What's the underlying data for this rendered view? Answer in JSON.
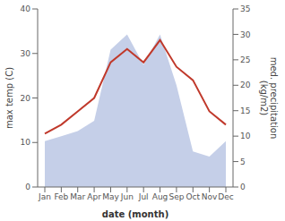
{
  "chart_data": {
    "type": "line",
    "x_label": "date (month)",
    "y_label": "max temp (C)",
    "y2_label": "med. precipitation\n(kg/m2)",
    "categories": [
      "Jan",
      "Feb",
      "Mar",
      "Apr",
      "May",
      "Jun",
      "Jul",
      "Aug",
      "Sep",
      "Oct",
      "Nov",
      "Dec"
    ],
    "series": [
      {
        "type": "area",
        "axis": "y2",
        "color": "#c5cfe8",
        "values": [
          9,
          10,
          11,
          13,
          27,
          30,
          24,
          30,
          20,
          7,
          6,
          9
        ]
      },
      {
        "type": "line",
        "color": "#c0392b",
        "values": [
          12,
          14,
          17,
          20,
          28,
          31,
          28,
          33,
          27,
          24,
          17,
          14
        ]
      }
    ],
    "ylim": [
      0,
      40
    ],
    "yticks": [
      0,
      10,
      20,
      30,
      40
    ],
    "y2lim": [
      0,
      35
    ],
    "y2ticks": [
      0,
      5,
      10,
      15,
      20,
      25,
      30,
      35
    ],
    "grid": false
  }
}
